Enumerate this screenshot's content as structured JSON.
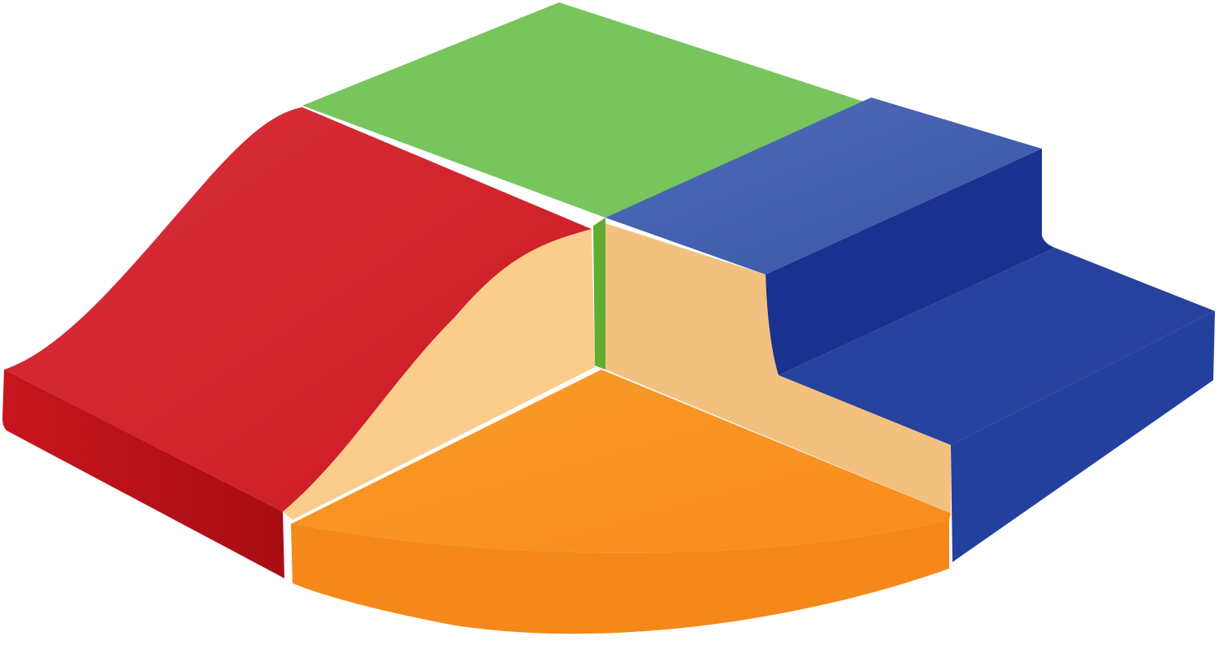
{
  "image": {
    "subject": "foam-play-blocks",
    "colors": {
      "background": "#ffffff",
      "red": "#d21f2a",
      "red_dark": "#b0121a",
      "green": "#76c55a",
      "green_dark": "#5fae32",
      "blue_top": "#4a67b5",
      "blue": "#1c3592",
      "blue_front": "#24409e",
      "beige": "#f6c583",
      "beige_light": "#fbd394",
      "orange": "#f8911f",
      "orange_dark": "#f5881a"
    }
  }
}
